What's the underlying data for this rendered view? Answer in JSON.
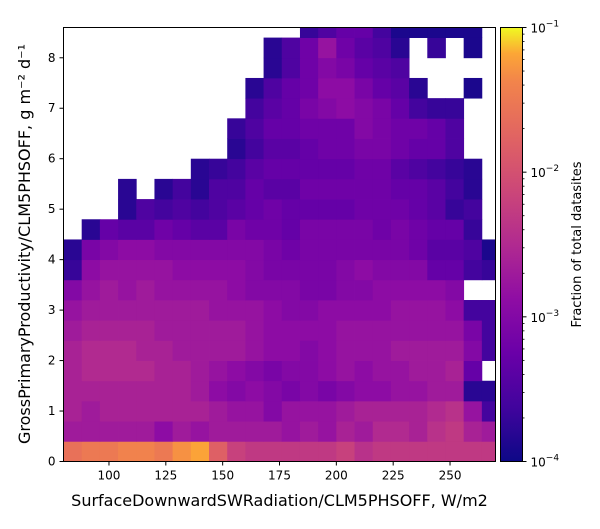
{
  "chart_data": {
    "type": "heatmap",
    "title": "",
    "xlabel": "SurfaceDownwardSWRadiation/CLM5PHSOFF,  W/m2",
    "ylabel": "GrossPrimaryProductivity/CLM5PHSOFF,  g m⁻² d⁻¹",
    "xlim": [
      80,
      270
    ],
    "ylim": [
      0,
      8.6
    ],
    "x_ticks": [
      100,
      125,
      150,
      175,
      200,
      225,
      250
    ],
    "x_tick_labels": [
      "100",
      "125",
      "150",
      "175",
      "200",
      "225",
      "250"
    ],
    "y_ticks": [
      0,
      1,
      2,
      3,
      4,
      5,
      6,
      7,
      8
    ],
    "y_tick_labels": [
      "0",
      "1",
      "2",
      "3",
      "4",
      "5",
      "6",
      "7",
      "8"
    ],
    "bin_width_x": 8,
    "bin_height_y": 0.4,
    "x_bin_centers": [
      76,
      84,
      92,
      100,
      108,
      116,
      124,
      132,
      140,
      148,
      156,
      164,
      172,
      180,
      188,
      196,
      204,
      212,
      220,
      228,
      236,
      244,
      252,
      260,
      268
    ],
    "y_bin_centers": [
      0.2,
      0.6,
      1.0,
      1.4,
      1.8,
      2.2,
      2.6,
      3.0,
      3.4,
      3.8,
      4.2,
      4.6,
      5.0,
      5.4,
      5.8,
      6.2,
      6.6,
      7.0,
      7.4,
      7.8,
      8.2,
      8.6
    ],
    "log10_fraction_grid_rows_bottom_to_top": [
      [
        -1.7,
        -1.6,
        -1.5,
        -1.5,
        -1.4,
        -1.4,
        -1.5,
        -1.3,
        -1.2,
        -1.8,
        -2.2,
        -2.3,
        -2.3,
        -2.3,
        -2.3,
        -2.3,
        -2.2,
        -2.4,
        -2.3,
        -2.3,
        -2.3,
        -2.3,
        -2.3,
        -2.3,
        -2.3
      ],
      [
        -2.5,
        -2.7,
        -2.7,
        -2.7,
        -2.7,
        -2.7,
        -2.9,
        -2.7,
        -2.8,
        -2.7,
        -2.7,
        -2.7,
        -2.7,
        -2.8,
        -2.7,
        -2.8,
        -2.6,
        -2.7,
        -2.5,
        -2.5,
        -2.6,
        -2.4,
        -2.3,
        -2.6,
        -2.7
      ],
      [
        -2.8,
        -2.6,
        -2.7,
        -2.6,
        -2.6,
        -2.6,
        -2.6,
        -2.6,
        -2.6,
        -2.7,
        -2.8,
        -2.8,
        -3.0,
        -2.8,
        -2.8,
        -2.8,
        -2.7,
        -2.6,
        -2.6,
        -2.6,
        -2.6,
        -2.5,
        -2.4,
        -2.8,
        -3.6
      ],
      [
        -3.1,
        -2.6,
        -2.6,
        -2.6,
        -2.6,
        -2.6,
        -2.6,
        -2.6,
        -2.7,
        -2.9,
        -3.0,
        -2.9,
        -3.0,
        -3.1,
        -3.0,
        -3.1,
        -3.0,
        -2.9,
        -2.9,
        -2.8,
        -2.8,
        -2.7,
        -2.7,
        -3.8,
        -3.8
      ],
      [
        -3.0,
        -2.6,
        -2.5,
        -2.5,
        -2.5,
        -2.5,
        -2.6,
        -2.6,
        -2.7,
        -2.8,
        -2.9,
        -3.0,
        -3.1,
        -3.0,
        -3.0,
        -2.9,
        -2.8,
        -2.9,
        -2.8,
        -2.8,
        -2.7,
        -2.7,
        -2.6,
        -3.3,
        null
      ],
      [
        -3.1,
        -2.6,
        -2.5,
        -2.5,
        -2.5,
        -2.6,
        -2.6,
        -2.7,
        -2.7,
        -2.7,
        -2.7,
        -2.8,
        -2.9,
        -2.9,
        -3.0,
        -2.9,
        -2.8,
        -2.8,
        -2.8,
        -2.7,
        -2.7,
        -2.7,
        -2.7,
        -3.0,
        -3.6
      ],
      [
        -3.4,
        -2.7,
        -2.6,
        -2.6,
        -2.6,
        -2.6,
        -2.7,
        -2.7,
        -2.7,
        -2.7,
        -2.7,
        -2.8,
        -2.9,
        -2.9,
        -2.9,
        -2.9,
        -2.8,
        -2.8,
        -2.8,
        -2.8,
        -2.8,
        -2.8,
        -2.8,
        -3.1,
        -3.6
      ],
      [
        -3.5,
        -2.8,
        -2.7,
        -2.7,
        -2.7,
        -2.7,
        -2.7,
        -2.7,
        -2.7,
        -2.8,
        -2.8,
        -2.8,
        -2.9,
        -3.0,
        -3.0,
        -2.9,
        -2.9,
        -2.9,
        -2.9,
        -2.8,
        -2.8,
        -2.8,
        -2.9,
        -3.6,
        -3.6
      ],
      [
        null,
        -3.0,
        -2.8,
        -2.7,
        -2.8,
        -2.7,
        -2.8,
        -2.8,
        -2.8,
        -2.8,
        -2.9,
        -3.0,
        -3.0,
        -3.0,
        -3.1,
        -3.1,
        -3.0,
        -3.0,
        -2.9,
        -2.9,
        -2.9,
        -2.9,
        -3.0,
        null,
        null
      ],
      [
        null,
        -3.7,
        -2.9,
        -2.8,
        -2.8,
        -2.8,
        -2.8,
        -2.9,
        -2.9,
        -2.9,
        -2.9,
        -3.0,
        -3.1,
        -3.1,
        -3.1,
        -3.1,
        -3.0,
        -2.9,
        -3.0,
        -3.0,
        -3.0,
        -3.3,
        -3.3,
        -3.6,
        -3.7
      ],
      [
        null,
        -3.8,
        -3.1,
        -3.0,
        -2.9,
        -2.9,
        -3.0,
        -3.0,
        -3.0,
        -3.0,
        -3.0,
        -3.0,
        -3.1,
        -3.2,
        -3.1,
        -3.1,
        -3.1,
        -3.1,
        -3.1,
        -3.1,
        -3.2,
        -3.4,
        -3.4,
        -3.5,
        -3.9
      ],
      [
        null,
        null,
        -3.8,
        -3.3,
        -3.4,
        -3.4,
        -3.2,
        -3.3,
        -3.4,
        -3.4,
        -3.1,
        -3.2,
        -3.2,
        -3.3,
        -3.1,
        -3.1,
        -3.1,
        -3.1,
        -3.2,
        -3.1,
        -3.2,
        -3.3,
        -3.3,
        -3.7,
        null
      ],
      [
        null,
        null,
        null,
        null,
        -3.8,
        -3.5,
        -3.6,
        -3.5,
        -3.6,
        -3.5,
        -3.4,
        -3.3,
        -3.2,
        -3.3,
        -3.3,
        -3.3,
        -3.3,
        -3.2,
        -3.2,
        -3.2,
        -3.3,
        -3.4,
        -3.7,
        -3.6,
        null
      ],
      [
        null,
        null,
        null,
        null,
        -3.8,
        null,
        -3.8,
        -3.6,
        -3.8,
        -3.5,
        -3.5,
        -3.3,
        -3.4,
        -3.4,
        -3.2,
        -3.2,
        -3.2,
        -3.2,
        -3.2,
        -3.3,
        -3.3,
        -3.4,
        -3.6,
        -3.8,
        null
      ],
      [
        null,
        null,
        null,
        null,
        null,
        null,
        null,
        null,
        -3.8,
        -3.7,
        -3.6,
        -3.4,
        -3.3,
        -3.3,
        -3.3,
        -3.3,
        -3.3,
        -3.2,
        -3.2,
        -3.4,
        -3.5,
        -3.6,
        -3.7,
        -3.8,
        null
      ],
      [
        null,
        null,
        null,
        null,
        null,
        null,
        null,
        null,
        null,
        null,
        -3.8,
        -3.6,
        -3.4,
        -3.4,
        -3.3,
        -3.2,
        -3.2,
        -3.1,
        -3.1,
        -3.2,
        -3.3,
        -3.3,
        -3.5,
        null,
        null
      ],
      [
        null,
        null,
        null,
        null,
        null,
        null,
        null,
        null,
        null,
        null,
        -3.7,
        -3.5,
        -3.3,
        -3.3,
        -3.2,
        -3.2,
        -3.2,
        -3.0,
        -3.1,
        -3.2,
        -3.2,
        -3.3,
        -3.5,
        null,
        null
      ],
      [
        null,
        null,
        null,
        null,
        null,
        null,
        null,
        null,
        null,
        null,
        null,
        -3.6,
        -3.4,
        -3.3,
        -3.1,
        -3.0,
        -2.9,
        -3.0,
        -3.1,
        -3.3,
        -3.6,
        -3.7,
        -3.7,
        null,
        null
      ],
      [
        null,
        null,
        null,
        null,
        null,
        null,
        null,
        null,
        null,
        null,
        null,
        -3.8,
        -3.5,
        -3.3,
        -3.2,
        -2.9,
        -2.9,
        -3.1,
        -3.3,
        -3.4,
        -3.8,
        null,
        null,
        -3.9,
        null
      ],
      [
        null,
        null,
        null,
        null,
        null,
        null,
        null,
        null,
        null,
        null,
        null,
        null,
        -3.8,
        -3.5,
        -3.2,
        -3.0,
        -3.1,
        -3.3,
        -3.4,
        -3.5,
        null,
        null,
        null,
        null,
        null
      ],
      [
        null,
        null,
        null,
        null,
        null,
        null,
        null,
        null,
        null,
        null,
        null,
        null,
        -3.8,
        -3.5,
        -3.2,
        -2.8,
        -3.2,
        -3.4,
        -3.5,
        -3.8,
        null,
        -3.7,
        null,
        -3.9,
        null
      ],
      [
        null,
        null,
        null,
        null,
        null,
        null,
        null,
        null,
        null,
        null,
        null,
        null,
        null,
        null,
        -3.7,
        -3.5,
        -3.3,
        -3.3,
        -3.6,
        -3.9,
        -3.9,
        -3.9,
        -3.9,
        -3.9,
        null
      ]
    ],
    "colorbar": {
      "label": "Fraction of total datasites",
      "scale": "log",
      "range": [
        0.0001,
        0.1
      ],
      "tick_exponents": [
        -4,
        -3,
        -2,
        -1
      ],
      "tick_label_base": "10",
      "tick_label_exponents": [
        "−4",
        "−3",
        "−2",
        "−1"
      ],
      "colormap": "plasma"
    },
    "grid": false,
    "legend": "none"
  }
}
